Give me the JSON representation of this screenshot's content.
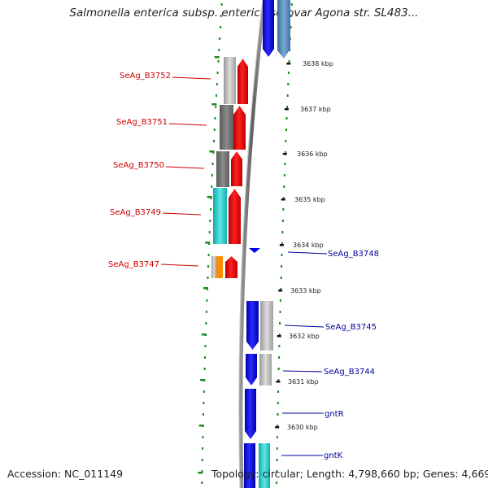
{
  "title": "Salmonella enterica subsp. enterica serovar Agona str. SL483...",
  "footer": {
    "accession": "Accession: NC_011149",
    "topology": "Topology: circular; Length: 4,798,660 bp; Genes: 4,669"
  },
  "ticks": [
    "3638 kbp",
    "3637 kbp",
    "3636 kbp",
    "3635 kbp",
    "3634 kbp",
    "3633 kbp",
    "3632 kbp",
    "3631 kbp",
    "3630 kbp"
  ],
  "genes_left": [
    "SeAg_B3752",
    "SeAg_B3751",
    "SeAg_B3750",
    "SeAg_B3749",
    "SeAg_B3747"
  ],
  "genes_right": [
    "SeAg_B3748",
    "SeAg_B3745",
    "SeAg_B3744",
    "gntR",
    "gntK"
  ],
  "colors": {
    "forward_strand": "#ee0000",
    "reverse_strand": "#0000ee",
    "cog_gray": "#b8b8b8",
    "cog_dark": "#6e6e6e",
    "cog_cyan": "#22cccc",
    "cog_orange": "#ff8c00",
    "cog_steel": "#4f86b8",
    "grid_green": "#1a8c1a",
    "backbone": "#808080"
  }
}
